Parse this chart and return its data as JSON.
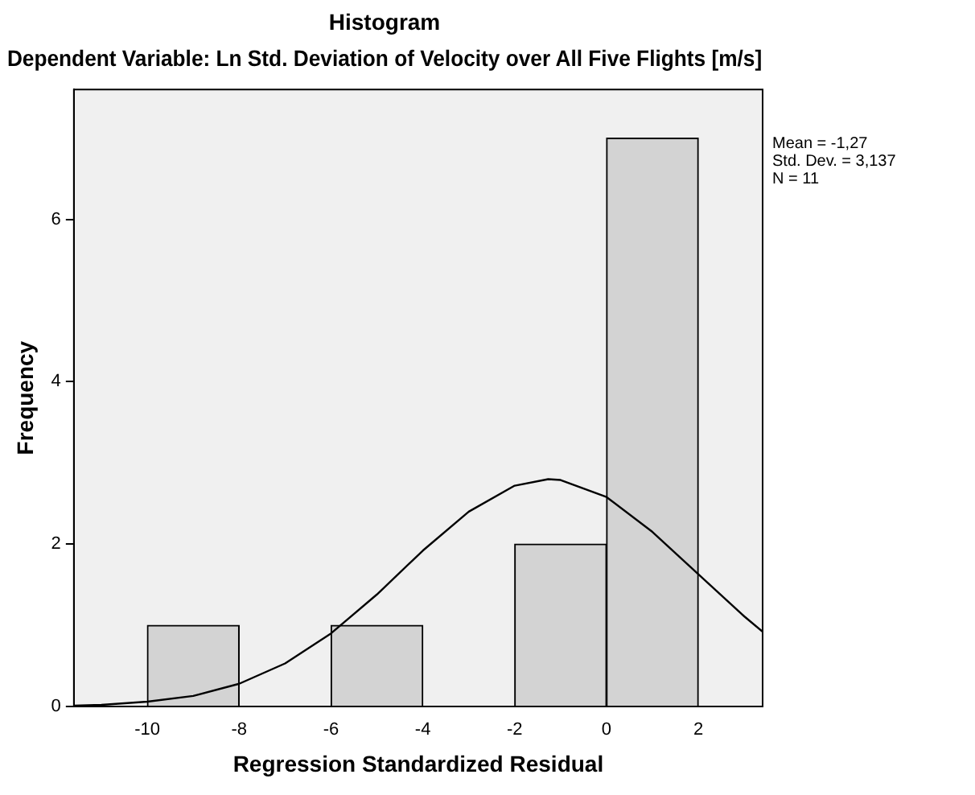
{
  "chart_data": {
    "type": "histogram",
    "title": "Histogram",
    "subtitle": "Dependent Variable: Ln Std. Deviation of Velocity over All Five Flights [m/s]",
    "xlabel": "Regression Standardized Residual",
    "ylabel": "Frequency",
    "bins": [
      -10,
      -8,
      -6,
      -4,
      -2,
      0,
      2
    ],
    "values": [
      1,
      0,
      1,
      0,
      2,
      7
    ],
    "color": "#d3d3d3",
    "series": [
      {
        "type": "line",
        "color": "#000000",
        "x": [
          -11.6,
          -11,
          -10,
          -9,
          -8,
          -7,
          -6,
          -5,
          -4,
          -3,
          -2,
          -1.27,
          -1,
          0,
          1,
          2,
          3,
          3.4
        ],
        "values": [
          0.01,
          0.02,
          0.06,
          0.13,
          0.28,
          0.53,
          0.9,
          1.38,
          1.92,
          2.4,
          2.72,
          2.8,
          2.79,
          2.58,
          2.15,
          1.63,
          1.11,
          0.92
        ]
      }
    ],
    "xlim": [
      -11.6,
      3.4
    ],
    "xticks": [
      -10,
      -8,
      -6,
      -4,
      -2,
      0,
      2
    ],
    "ylim": [
      0,
      7.6
    ],
    "yticks": [
      0,
      2,
      4,
      6
    ],
    "grid": false,
    "legend": false,
    "annotations": [
      "Mean = -1,27",
      "Std. Dev. = 3,137",
      "N = 11"
    ]
  }
}
